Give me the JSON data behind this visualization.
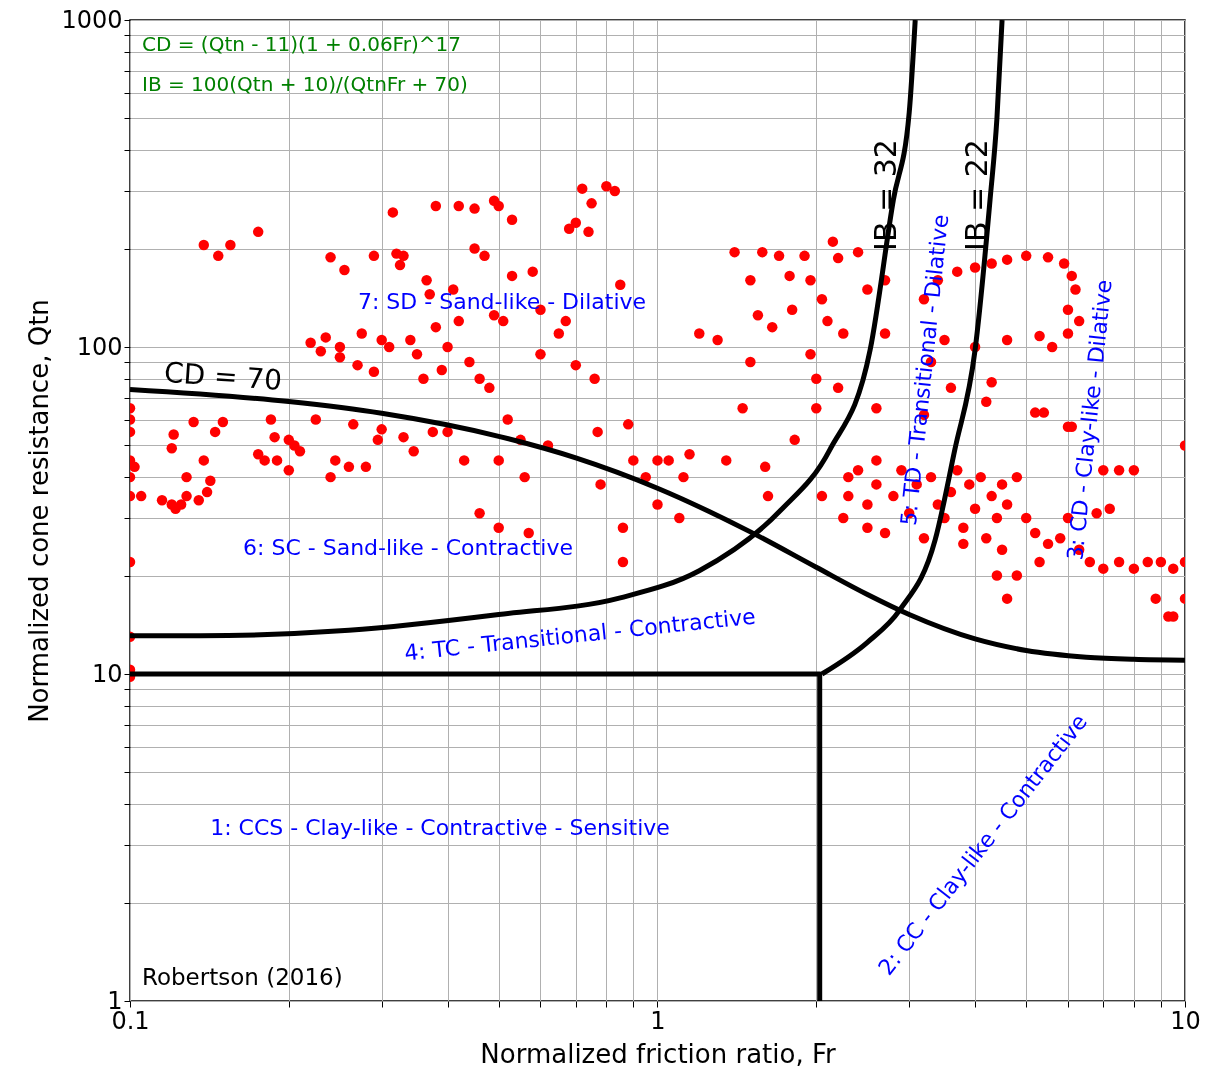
{
  "chart_data": {
    "type": "scatter",
    "xlabel": "Normalized friction ratio, Fr",
    "ylabel": "Normalized cone resistance, Qtn",
    "log": "xy",
    "xlim": [
      0.1,
      10
    ],
    "ylim": [
      1,
      1000
    ],
    "xticks": [
      0.1,
      1,
      10
    ],
    "yticks": [
      1,
      10,
      100,
      1000
    ],
    "grid": true,
    "series": [
      {
        "marker": "circle",
        "color": "#ff0000",
        "x": [
          0.1,
          0.1,
          0.1,
          0.1,
          0.1,
          0.1,
          0.1,
          0.1,
          0.1,
          0.1,
          0.102,
          0.105,
          0.115,
          0.12,
          0.122,
          0.125,
          0.128,
          0.12,
          0.121,
          0.128,
          0.132,
          0.135,
          0.138,
          0.14,
          0.142,
          0.145,
          0.15,
          0.138,
          0.147,
          0.155,
          0.175,
          0.175,
          0.18,
          0.185,
          0.188,
          0.19,
          0.2,
          0.2,
          0.205,
          0.21,
          0.22,
          0.225,
          0.23,
          0.235,
          0.24,
          0.24,
          0.245,
          0.25,
          0.255,
          0.25,
          0.26,
          0.265,
          0.27,
          0.275,
          0.28,
          0.29,
          0.29,
          0.295,
          0.3,
          0.3,
          0.31,
          0.315,
          0.32,
          0.325,
          0.33,
          0.33,
          0.34,
          0.345,
          0.35,
          0.36,
          0.365,
          0.37,
          0.375,
          0.38,
          0.38,
          0.39,
          0.4,
          0.4,
          0.41,
          0.42,
          0.42,
          0.43,
          0.44,
          0.45,
          0.45,
          0.46,
          0.46,
          0.47,
          0.48,
          0.49,
          0.49,
          0.5,
          0.5,
          0.5,
          0.51,
          0.52,
          0.53,
          0.53,
          0.55,
          0.56,
          0.57,
          0.58,
          0.6,
          0.6,
          0.62,
          0.65,
          0.67,
          0.68,
          0.7,
          0.7,
          0.72,
          0.74,
          0.75,
          0.76,
          0.77,
          0.78,
          0.8,
          0.83,
          0.85,
          0.86,
          0.86,
          0.88,
          0.9,
          0.95,
          1.0,
          1.0,
          1.05,
          1.1,
          1.12,
          1.15,
          1.2,
          1.3,
          1.35,
          1.4,
          1.45,
          1.5,
          1.5,
          1.55,
          1.58,
          1.6,
          1.62,
          1.65,
          1.7,
          1.78,
          1.8,
          1.82,
          1.9,
          1.95,
          1.95,
          2.0,
          2.0,
          2.05,
          2.05,
          2.1,
          2.15,
          2.2,
          2.2,
          2.25,
          2.25,
          2.3,
          2.4,
          2.5,
          2.5,
          2.6,
          2.6,
          2.7,
          2.7,
          2.3,
          2.4,
          2.5,
          2.6,
          2.7,
          2.8,
          2.9,
          3.0,
          3.1,
          3.2,
          3.3,
          3.4,
          3.5,
          3.6,
          3.7,
          3.8,
          3.9,
          4.0,
          4.1,
          4.2,
          4.3,
          4.4,
          4.5,
          4.6,
          4.8,
          5.0,
          5.2,
          5.5,
          5.8,
          6.0,
          6.3,
          6.6,
          7.0,
          7.5,
          8.0,
          8.5,
          9.0,
          9.5,
          10,
          9.3,
          9.5,
          8.8,
          10,
          10,
          7.0,
          7.5,
          8.0,
          6.8,
          7.2,
          5.2,
          5.4,
          6.0,
          6.1,
          4.4,
          4.5,
          4.6,
          4.8,
          5.3,
          3.8,
          3.2,
          3.4,
          3.7,
          4.0,
          4.3,
          4.6,
          5.0,
          5.5,
          5.9,
          6.1,
          6.2,
          6.0,
          6.3,
          6.0,
          5.6,
          5.3,
          4.6,
          4.0,
          3.5,
          3.3,
          3.6,
          4.3,
          4.2,
          3.2
        ],
        "values": [
          65,
          60,
          55,
          45,
          40,
          35,
          22,
          13,
          10.3,
          9.8,
          43,
          35,
          34,
          33,
          32,
          33,
          35,
          49,
          54,
          40,
          59,
          34,
          45,
          36,
          39,
          55,
          59,
          205,
          190,
          205,
          225,
          47,
          45,
          60,
          53,
          45,
          42,
          52,
          50,
          48,
          103,
          60,
          97,
          107,
          40,
          188,
          45,
          100,
          172,
          93,
          43,
          58,
          88,
          110,
          43,
          84,
          190,
          52,
          105,
          56,
          100,
          258,
          193,
          178,
          190,
          53,
          105,
          48,
          95,
          80,
          160,
          145,
          55,
          270,
          115,
          85,
          100,
          55,
          150,
          120,
          270,
          45,
          90,
          265,
          200,
          80,
          31,
          190,
          75,
          280,
          125,
          270,
          45,
          28,
          120,
          60,
          245,
          165,
          52,
          40,
          27,
          170,
          130,
          95,
          50,
          110,
          120,
          230,
          240,
          88,
          305,
          225,
          275,
          80,
          55,
          38,
          310,
          300,
          155,
          28,
          22,
          58,
          45,
          40,
          45,
          33,
          45,
          30,
          40,
          47,
          110,
          105,
          45,
          195,
          65,
          160,
          90,
          125,
          195,
          43,
          35,
          115,
          190,
          165,
          130,
          52,
          190,
          160,
          95,
          65,
          80,
          140,
          35,
          120,
          210,
          75,
          187,
          30,
          110,
          40,
          195,
          28,
          150,
          45,
          65,
          160,
          110,
          35,
          42,
          33,
          38,
          27,
          35,
          42,
          31,
          38,
          26,
          40,
          33,
          30,
          36,
          42,
          28,
          38,
          32,
          40,
          26,
          35,
          30,
          38,
          33,
          40,
          30,
          27,
          25,
          26,
          30,
          24,
          22,
          21,
          22,
          21,
          22,
          22,
          21,
          22,
          15,
          15,
          17,
          17,
          50,
          42,
          42,
          42,
          31,
          32,
          63,
          63,
          57,
          57,
          20,
          24,
          17,
          20,
          22,
          25,
          140,
          160,
          170,
          175,
          180,
          185,
          190,
          188,
          180,
          165,
          150,
          130,
          120,
          110,
          100,
          108,
          105,
          100,
          105,
          90,
          75,
          78,
          68,
          62
        ]
      },
      {
        "type": "line",
        "color": "#000000",
        "x": [
          0.1,
          0.2,
          0.3,
          0.5,
          0.7,
          1,
          1.5,
          2,
          2.5,
          3,
          4,
          5,
          6.5,
          8,
          10
        ],
        "values": [
          74.2,
          68.1,
          62.7,
          53.3,
          45.8,
          37.0,
          27.2,
          21.2,
          17.5,
          15.2,
          12.8,
          11.8,
          11.26,
          11.09,
          11.02
        ]
      },
      {
        "type": "line",
        "color": "#000000",
        "x": [
          0.1,
          0.136,
          0.26,
          0.5,
          0.85,
          1.2,
          1.71,
          2.12,
          2.53,
          2.8,
          3.0,
          3.08
        ],
        "values": [
          13.1,
          13.1,
          13.6,
          15.2,
          17.1,
          20.7,
          31.6,
          48.4,
          98,
          282,
          520,
          1000
        ]
      },
      {
        "type": "line",
        "color": "#000000",
        "x": [
          2.05,
          2.5,
          2.88,
          3.36,
          3.66,
          4.0,
          4.27,
          4.4,
          4.5
        ],
        "values": [
          10,
          12.5,
          15.7,
          25.7,
          48.4,
          98,
          282,
          500,
          1000
        ]
      },
      {
        "type": "line",
        "color": "#000000",
        "x": [
          0.1,
          2.03,
          2.03
        ],
        "values": [
          10,
          10,
          1
        ]
      }
    ],
    "annotations": [
      "CD = (Qtn - 11)(1 + 0.06Fr)^17",
      "IB = 100(Qtn + 10)/(QtnFr + 70)",
      "Robertson (2016)",
      "7: SD - Sand-like - Dilative",
      "6: SC - Sand-like - Contractive",
      "4: TC - Transitional - Contractive",
      "1: CCS - Clay-like - Contractive - Sensitive",
      "2: CC - Clay-like - Contractive",
      "5: TD - Transitional - Dilative",
      "3: CD - Clay-like - Dilative",
      "CD = 70",
      "IB = 32",
      "IB = 22"
    ]
  }
}
